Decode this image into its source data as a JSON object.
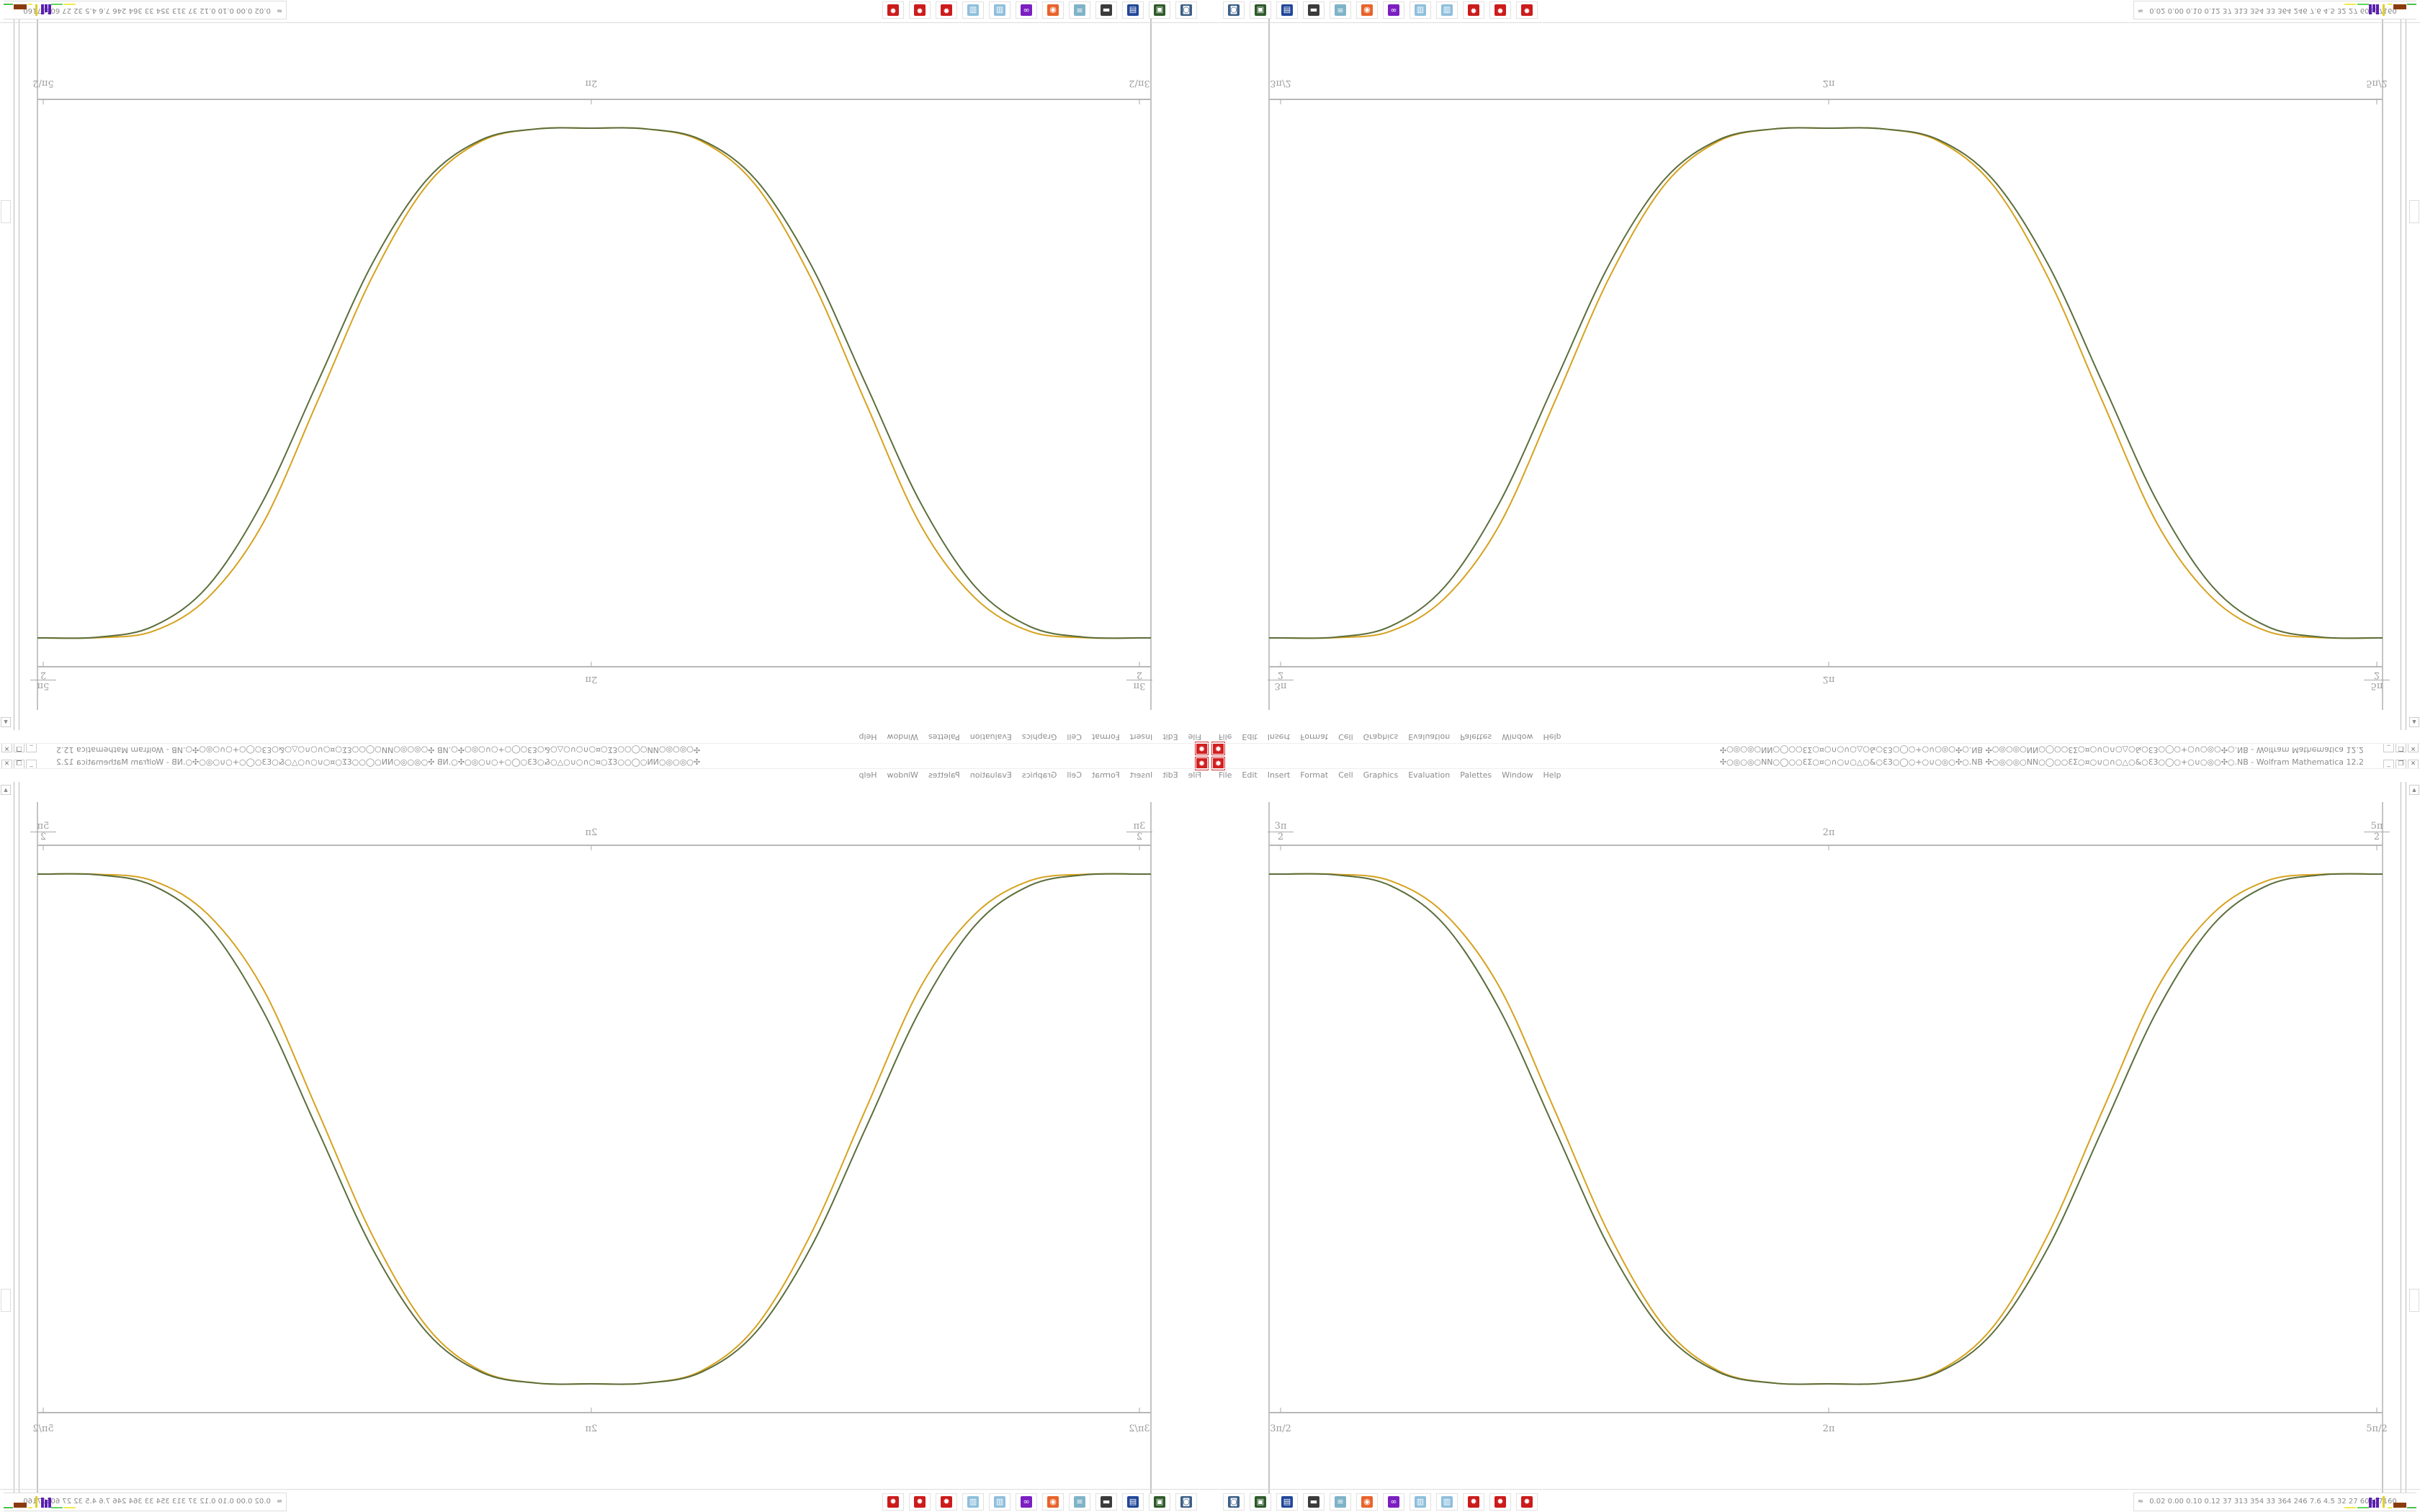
{
  "window": {
    "title": "✣○◎○◎○NN○◯○○ƐƩ○¤○∩○∪○△○&○Ɛ3○◯○+○∪○◎○✣○.NB ✣○◎○◎○NN○◯○○ƐƩ○¤○∪○∩○△○&○Ɛ3○◯○+○∪○◎○✣○.NB - Wolfram Mathematica 12.2",
    "app_icon": "wolfram-icon",
    "buttons": {
      "minimize": "_",
      "restore": "❐",
      "close": "✕"
    }
  },
  "menu": [
    "File",
    "Edit",
    "Insert",
    "Format",
    "Cell",
    "Graphics",
    "Evaluation",
    "Palettes",
    "Window",
    "Help"
  ],
  "plot": {
    "top_ticks": [
      {
        "num": "3π",
        "den": "2"
      },
      {
        "label": "2π"
      },
      {
        "num": "5π",
        "den": "2"
      }
    ],
    "bottom_ticks": [
      {
        "num": "3π",
        "den": "2"
      },
      {
        "label": "2π"
      },
      {
        "num": "5π",
        "den": "2"
      }
    ]
  },
  "chart_data": {
    "type": "line",
    "x_unit": "π",
    "xlim": [
      1.5,
      2.5
    ],
    "x_ticks": [
      "3π/2",
      "2π",
      "5π/2"
    ],
    "ylim": [
      -1,
      1
    ],
    "x": [
      1.5,
      1.55,
      1.6,
      1.65,
      1.7,
      1.75,
      1.8,
      1.85,
      1.9,
      1.95,
      2.0,
      2.05,
      2.1,
      2.15,
      2.2,
      2.25,
      2.3,
      2.35,
      2.4,
      2.45,
      2.5
    ],
    "series": [
      {
        "color": "#d6a21e",
        "values": [
          1,
          0.999,
          0.974,
          0.843,
          0.554,
          0.074,
          -0.415,
          -0.776,
          -0.95,
          -0.997,
          -1,
          -0.997,
          -0.95,
          -0.776,
          -0.415,
          0.074,
          0.554,
          0.843,
          0.974,
          0.999,
          1
        ]
      },
      {
        "color": "#5b6d3a",
        "values": [
          1,
          0.997,
          0.955,
          0.798,
          0.467,
          0,
          -0.467,
          -0.798,
          -0.955,
          -0.997,
          -1,
          -0.997,
          -0.955,
          -0.798,
          -0.467,
          0,
          0.467,
          0.798,
          0.955,
          0.997,
          1
        ]
      }
    ],
    "grid": false
  },
  "status": {
    "chevron": "≈",
    "text": "0.02 0.00 0.10 0.12  37  313  354  33  364  246  7.6  4.5  32  27  60507160"
  },
  "taskbar": [
    {
      "icon": "camera-icon",
      "color": "#3c5f86",
      "glyph": "◙"
    },
    {
      "icon": "green-device-icon",
      "color": "#2e5a2a",
      "glyph": "▣"
    },
    {
      "icon": "floppy-icon",
      "color": "#21479a",
      "glyph": "▤"
    },
    {
      "icon": "monitor-icon",
      "color": "#3b3b3b",
      "glyph": "▬"
    },
    {
      "icon": "notes-icon",
      "color": "#7fb3c8",
      "glyph": "≡"
    },
    {
      "icon": "firefox-icon",
      "color": "#e8632b",
      "glyph": "◉"
    },
    {
      "icon": "purple-app-icon",
      "color": "#7b1fc2",
      "glyph": "∞"
    },
    {
      "icon": "document-icon",
      "color": "#8fbfdc",
      "glyph": "▥"
    },
    {
      "icon": "document-icon-2",
      "color": "#8fbfdc",
      "glyph": "▥"
    },
    {
      "icon": "wolfram-icon",
      "color": "#cc1b1b",
      "glyph": "✹"
    },
    {
      "icon": "wolfram-icon-2",
      "color": "#cc1b1b",
      "glyph": "✹"
    },
    {
      "icon": "wolfram-icon-3",
      "color": "#cc1b1b",
      "glyph": "✹"
    }
  ]
}
